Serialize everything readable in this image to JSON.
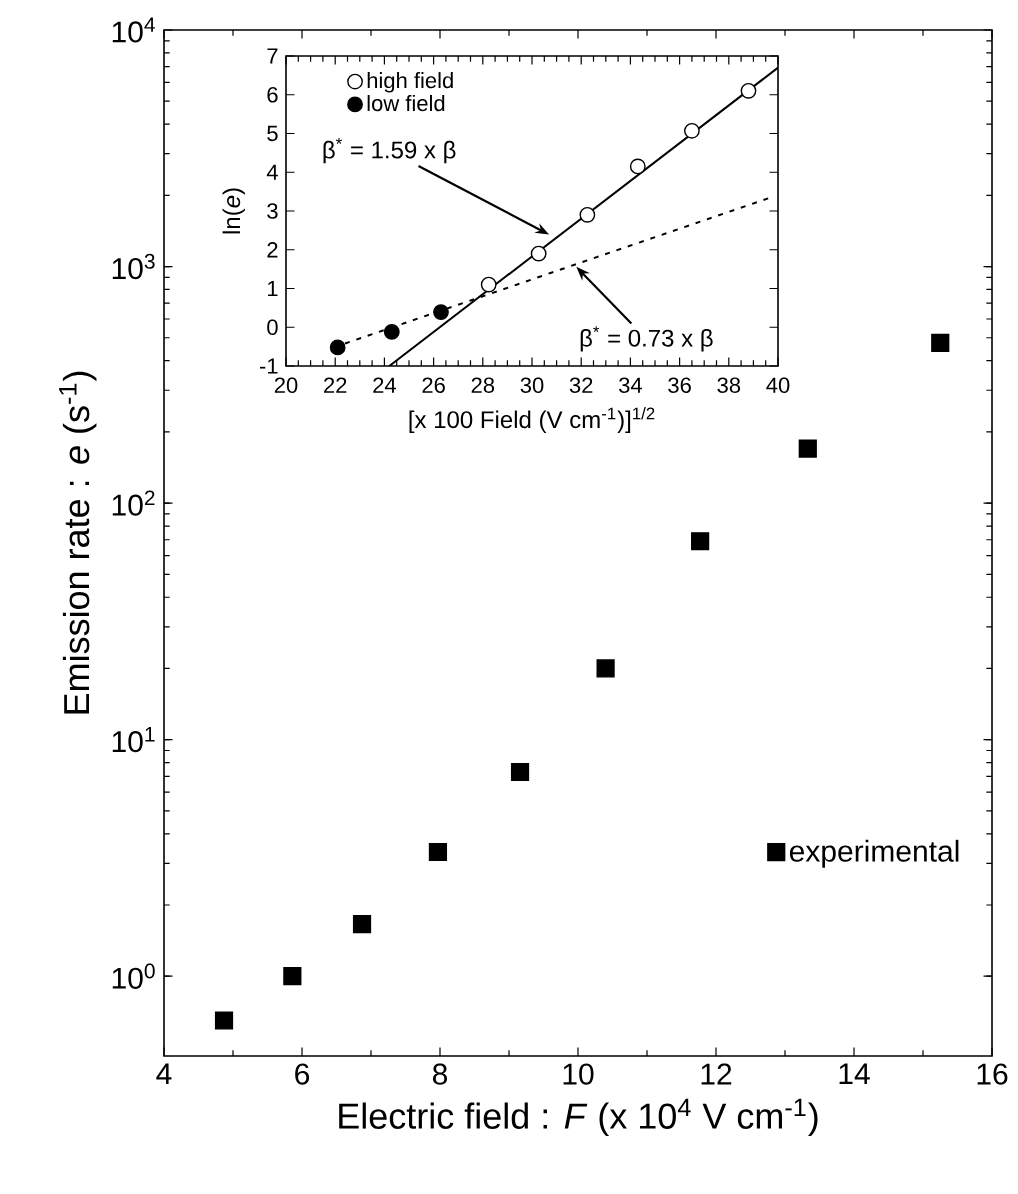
{
  "chart_data": [
    {
      "type": "scatter",
      "xlabel": "Electric field : *F* (x 10$^{4}$ V cm$^{-1}$)",
      "ylabel": "Emission rate : *e* (s$^{-1}$)",
      "series": [
        {
          "name": "experimental",
          "color": "#000000",
          "x": [
            4.87,
            5.86,
            6.87,
            7.97,
            9.16,
            10.4,
            11.77,
            13.33,
            15.25
          ],
          "values": [
            0.65,
            1.0,
            1.66,
            3.35,
            7.3,
            20,
            69,
            170,
            476
          ]
        }
      ],
      "xlim": [
        4,
        16
      ],
      "ylim": [
        0.46,
        10000
      ],
      "xticks": [
        4,
        6,
        8,
        10,
        12,
        14,
        16
      ],
      "yticks": [
        {
          "value": 1,
          "label": "10$^{0}$"
        },
        {
          "value": 10,
          "label": "10$^{1}$"
        },
        {
          "value": 100,
          "label": "10$^{2}$"
        },
        {
          "value": 1000,
          "label": "10$^{3}$"
        },
        {
          "value": 10000,
          "label": "10$^{4}$"
        }
      ],
      "log": "y",
      "marker": "square",
      "legend": "bottom right"
    },
    {
      "type": "scatter",
      "xlabel": "[x 100 Field (V cm$^{-1}$)]$^{1/2}$",
      "ylabel": "ln(*e*)",
      "series": [
        {
          "name": "high field",
          "color": "#ffffff",
          "marker": "circle",
          "x": [
            28.24,
            30.27,
            32.25,
            34.3,
            36.5,
            38.8
          ],
          "values": [
            1.1,
            1.9,
            2.9,
            4.15,
            5.07,
            6.1
          ]
        },
        {
          "name": "low field",
          "color": "#000000",
          "marker": "circle",
          "x": [
            22.1,
            24.3,
            26.3
          ],
          "values": [
            -0.52,
            -0.12,
            0.39
          ]
        },
        {
          "type": "line",
          "color": "#000000",
          "marker": "none",
          "line_style": "solid",
          "x": [
            24.2,
            40
          ],
          "values": [
            -1,
            6.7
          ]
        },
        {
          "type": "line",
          "color": "#000000",
          "marker": "none",
          "line_style": "dotted",
          "x": [
            22.4,
            39.8
          ],
          "values": [
            -0.42,
            3.37
          ]
        }
      ],
      "xlim": [
        20,
        40
      ],
      "ylim": [
        -1,
        7
      ],
      "xticks": [
        20,
        22,
        24,
        26,
        28,
        30,
        32,
        34,
        36,
        38,
        40
      ],
      "yticks": [
        -1,
        0,
        1,
        2,
        3,
        4,
        5,
        6,
        7
      ],
      "legend": "top left",
      "annotations": [
        {
          "text": "β$^{*}$ = 1.59 x β",
          "x": 30.7,
          "y": 2.39
        },
        {
          "text": "β$^{*}$ = 0.73 x β",
          "x": 31.8,
          "y": 1.56
        }
      ]
    }
  ]
}
